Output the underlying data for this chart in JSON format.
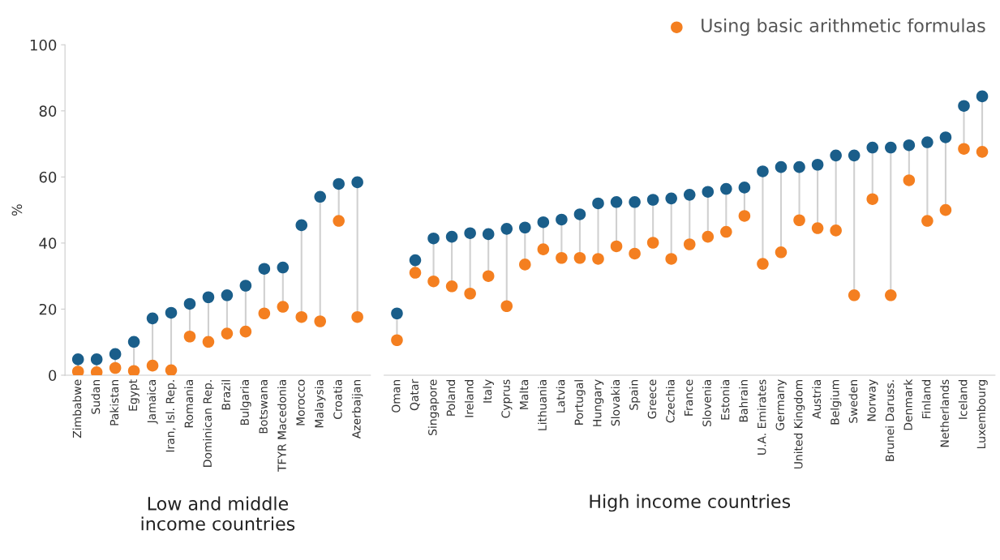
{
  "chart_data": [
    {
      "type": "scatter",
      "ylabel": "%",
      "xlabel": "Low and middle\nincome countries",
      "categories": [
        "Zimbabwe",
        "Sudan",
        "Pakistan",
        "Egypt",
        "Jamaica",
        "Iran, Isl. Rep.",
        "Romania",
        "Dominican Rep.",
        "Brazil",
        "Bulgaria",
        "Botswana",
        "TFYR Macedonia",
        "Morocco",
        "Malaysia",
        "Croatia",
        "Azerbaijan"
      ],
      "series": [
        {
          "color": "#1a5e8a",
          "values": [
            4.8,
            4.8,
            6.4,
            10.1,
            17.2,
            18.9,
            21.6,
            23.6,
            24.2,
            27.1,
            32.2,
            32.6,
            45.4,
            54,
            57.9,
            58.4
          ]
        },
        {
          "color": "#f47f20",
          "values": [
            1.1,
            0.9,
            2.2,
            1.3,
            2.9,
            1.5,
            11.7,
            10.1,
            12.6,
            13.2,
            18.7,
            20.7,
            17.6,
            16.3,
            46.7,
            17.6
          ]
        }
      ],
      "ylim": [
        0,
        100
      ],
      "yticks": [
        0,
        20,
        40,
        60,
        80,
        100
      ],
      "marker": "circle",
      "grid": false,
      "legend": false
    },
    {
      "type": "scatter",
      "xlabel": "High income countries",
      "categories": [
        "Oman",
        "Qatar",
        "Singapore",
        "Poland",
        "Ireland",
        "Italy",
        "Cyprus",
        "Malta",
        "Lithuania",
        "Latvia",
        "Portugal",
        "Hungary",
        "Slovakia",
        "Spain",
        "Greece",
        "Czechia",
        "France",
        "Slovenia",
        "Estonia",
        "Bahrain",
        "U.A. Emirates",
        "Germany",
        "United Kingdom",
        "Austria",
        "Belgium",
        "Sweden",
        "Norway",
        "Brunei Daruss.",
        "Denmark",
        "Finland",
        "Netherlands",
        "Iceland",
        "Luxembourg"
      ],
      "series": [
        {
          "color": "#1a5e8a",
          "values": [
            18.7,
            34.8,
            41.4,
            41.9,
            43,
            42.7,
            44.3,
            44.7,
            46.3,
            47.1,
            48.7,
            52,
            52.4,
            52.4,
            53.1,
            53.5,
            54.6,
            55.5,
            56.4,
            56.8,
            61.7,
            63,
            63,
            63.7,
            66.5,
            66.5,
            68.9,
            68.9,
            69.6,
            70.5,
            72,
            81.5,
            84.4
          ]
        },
        {
          "name": "Using basic arithmetic formulas",
          "color": "#f47f20",
          "values": [
            10.6,
            31,
            28.4,
            26.9,
            24.7,
            30,
            20.9,
            33.5,
            38.1,
            35.5,
            35.5,
            35.2,
            39,
            36.8,
            40.1,
            35.2,
            39.6,
            41.9,
            43.4,
            48.2,
            33.7,
            37.2,
            46.9,
            44.5,
            43.8,
            24.2,
            53.3,
            24.2,
            59,
            46.7,
            50,
            68.5,
            67.6
          ]
        }
      ],
      "ylim": [
        0,
        100
      ],
      "tick_labels": "x",
      "marker": "circle",
      "grid": false,
      "legend": "top right"
    }
  ]
}
